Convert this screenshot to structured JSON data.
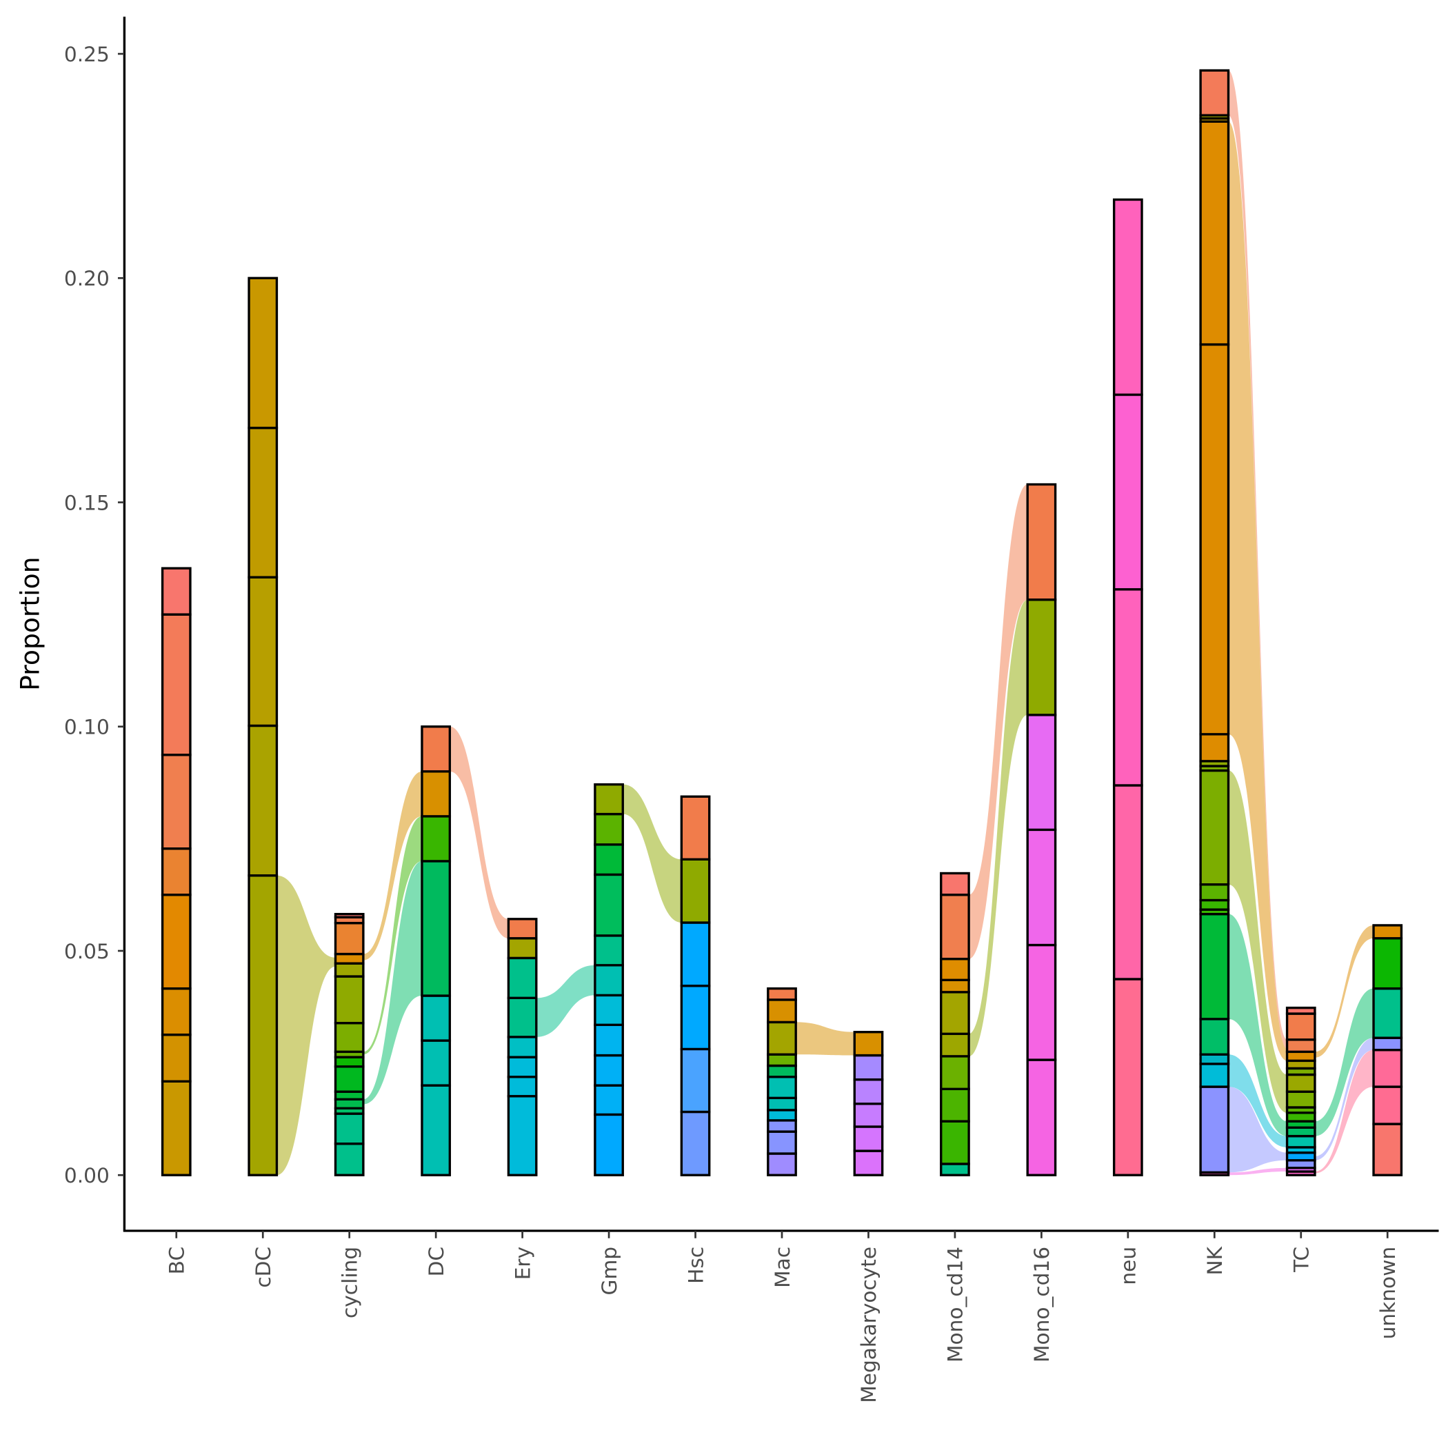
{
  "chart_data": {
    "type": "bar",
    "subtype": "stacked alluvial",
    "title": "",
    "xlabel": "",
    "ylabel": "Proportion",
    "ylim": [
      -0.0125,
      0.258
    ],
    "yticks": [
      0,
      0.05,
      0.1,
      0.15,
      0.2,
      0.25
    ],
    "ytick_labels": [
      "0.00",
      "0.05",
      "0.10",
      "0.15",
      "0.20",
      "0.25"
    ],
    "grid": false,
    "legend": "none",
    "categories": [
      "BC",
      "cDC",
      "cycling",
      "DC",
      "Ery",
      "Gmp",
      "Hsc",
      "Mac",
      "Megakaryocyte",
      "Mono_cd14",
      "Mono_cd16",
      "neu",
      "NK",
      "TC",
      "unknown"
    ],
    "bars": [
      {
        "name": "BC",
        "bounds": [
          0,
          0.0209,
          0.0313,
          0.0416,
          0.0625,
          0.0728,
          0.0937,
          0.125,
          0.1353
        ],
        "colors": [
          "#C99800",
          "#D39200",
          "#DB8E00",
          "#E38900",
          "#EA8331",
          "#F07F4F",
          "#F37B59",
          "#F8766D"
        ]
      },
      {
        "name": "cDC",
        "bounds": [
          0,
          0.0668,
          0.1002,
          0.1333,
          0.1666,
          0.2
        ],
        "colors": [
          "#A3A500",
          "#AAA300",
          "#B79F00",
          "#C09B00",
          "#C99800"
        ]
      },
      {
        "name": "cycling",
        "bounds": [
          0,
          0.007,
          0.0137,
          0.0149,
          0.0169,
          0.0186,
          0.0242,
          0.0263,
          0.0275,
          0.0339,
          0.0443,
          0.0472,
          0.0493,
          0.0562,
          0.0575,
          0.0582
        ],
        "colors": [
          "#00C08B",
          "#00C08B",
          "#00BE67",
          "#00BB4E",
          "#00BA38",
          "#00B81F",
          "#0CB702",
          "#6BB100",
          "#7CAE00",
          "#8FAA00",
          "#9DA700",
          "#DE8C00",
          "#EA8331",
          "#F07F4F",
          "#F8766D"
        ]
      },
      {
        "name": "DC",
        "bounds": [
          0,
          0.02,
          0.03,
          0.04,
          0.07,
          0.08,
          0.09,
          0.1
        ],
        "colors": [
          "#00BFB2",
          "#00BFB2",
          "#00BFB2",
          "#00BA5E",
          "#39B600",
          "#D89000",
          "#F17C4B"
        ]
      },
      {
        "name": "Ery",
        "bounds": [
          0,
          0.0176,
          0.0219,
          0.0263,
          0.0308,
          0.0395,
          0.0484,
          0.0528,
          0.0571
        ],
        "colors": [
          "#00BBDA",
          "#00BBDA",
          "#00BBDA",
          "#00BFC4",
          "#00C08B",
          "#00C08B",
          "#A3A500",
          "#F17C4B"
        ]
      },
      {
        "name": "Gmp",
        "bounds": [
          0,
          0.0135,
          0.02,
          0.0267,
          0.0335,
          0.0401,
          0.0468,
          0.0534,
          0.067,
          0.0737,
          0.0805,
          0.0871
        ],
        "colors": [
          "#00A9FF",
          "#00B0F6",
          "#00B0F6",
          "#00B4EF",
          "#00BCD8",
          "#00BFB2",
          "#00C08B",
          "#00BD5C",
          "#00BA38",
          "#5BB300",
          "#8FAA00"
        ]
      },
      {
        "name": "Hsc",
        "bounds": [
          0,
          0.0141,
          0.0281,
          0.0422,
          0.0563,
          0.0704,
          0.0844
        ],
        "colors": [
          "#6E9AFF",
          "#4AA3FF",
          "#00A9FF",
          "#00A9FF",
          "#8FAA00",
          "#F17C4B"
        ]
      },
      {
        "name": "Mac",
        "bounds": [
          0,
          0.0048,
          0.0097,
          0.0122,
          0.0145,
          0.0172,
          0.0219,
          0.0244,
          0.0269,
          0.0341,
          0.0391,
          0.0416
        ],
        "colors": [
          "#9F8CFF",
          "#8794FF",
          "#8794FF",
          "#00BBDA",
          "#00BFB2",
          "#00BFB2",
          "#00BA5E",
          "#6BB100",
          "#A3A500",
          "#D89000",
          "#F17C4B",
          "#F8766D"
        ]
      },
      {
        "name": "Megakaryocyte",
        "bounds": [
          0,
          0.0054,
          0.0108,
          0.0159,
          0.0213,
          0.0267,
          0.0319
        ],
        "colors": [
          "#DB72FB",
          "#D575FE",
          "#C77CFF",
          "#B983FF",
          "#A58AFF",
          "#D89000"
        ]
      },
      {
        "name": "Mono_cd14",
        "bounds": [
          0,
          0.0025,
          0.012,
          0.0192,
          0.0265,
          0.0315,
          0.0408,
          0.0435,
          0.0482,
          0.0625,
          0.0673
        ],
        "colors": [
          "#00C08B",
          "#3AB500",
          "#4CB400",
          "#6BB100",
          "#9DA700",
          "#A3A500",
          "#D89000",
          "#DF8D00",
          "#F07F4F",
          "#F8766D"
        ]
      },
      {
        "name": "Mono_cd16",
        "bounds": [
          0,
          0.0257,
          0.0513,
          0.077,
          0.1026,
          0.1283,
          0.154
        ],
        "colors": [
          "#F564E3",
          "#F564E3",
          "#EF67EB",
          "#E76BF3",
          "#8FAA00",
          "#F17C4B"
        ]
      },
      {
        "name": "neu",
        "bounds": [
          0,
          0.0437,
          0.0869,
          0.1306,
          0.174,
          0.2175
        ],
        "colors": [
          "#FF6C91",
          "#FF66A8",
          "#FF62BC",
          "#FD61D1",
          "#FF62BC"
        ]
      },
      {
        "name": "NK",
        "bounds": [
          0,
          0.0006,
          0.0197,
          0.0248,
          0.0269,
          0.0348,
          0.0582,
          0.0592,
          0.0613,
          0.0648,
          0.0902,
          0.0912,
          0.0923,
          0.0983,
          0.1852,
          0.2349,
          0.2356,
          0.2363,
          0.2463
        ],
        "colors": [
          "#FF61C3",
          "#8B93FF",
          "#00BCD8",
          "#00B4C4",
          "#00BE67",
          "#00BA38",
          "#39B600",
          "#39B600",
          "#5BB300",
          "#7CAE00",
          "#7CAE00",
          "#8FAA00",
          "#DE8C00",
          "#DE8C00",
          "#DE8C00",
          "#C99800",
          "#A3A500",
          "#F37B59"
        ]
      },
      {
        "name": "TC",
        "bounds": [
          0,
          0.0008,
          0.0016,
          0.0033,
          0.005,
          0.0062,
          0.0087,
          0.0106,
          0.012,
          0.0139,
          0.0151,
          0.0186,
          0.0224,
          0.0238,
          0.0255,
          0.0275,
          0.0302,
          0.036,
          0.0373
        ],
        "colors": [
          "#FF61C9",
          "#E76BF3",
          "#8794FF",
          "#00A5FF",
          "#00BCD8",
          "#00C1AA",
          "#00BE67",
          "#00BA38",
          "#39B600",
          "#5BB300",
          "#7CAE00",
          "#9AA800",
          "#7CAE00",
          "#AEA200",
          "#DE8C00",
          "#F07F4F",
          "#F17C4B",
          "#F8766D"
        ]
      },
      {
        "name": "unknown",
        "bounds": [
          0,
          0.0114,
          0.0197,
          0.0279,
          0.0306,
          0.0416,
          0.0528,
          0.0557
        ],
        "colors": [
          "#F8766D",
          "#FF6C91",
          "#FF6A98",
          "#8B93FF",
          "#00C08B",
          "#0CB702",
          "#DE8C00"
        ]
      }
    ],
    "flows": [
      {
        "from": "cDC",
        "to": "cycling",
        "from_range": [
          0,
          0.0668
        ],
        "to_range": [
          0.0465,
          0.0485
        ],
        "color": "#A3A500"
      },
      {
        "from": "cycling",
        "to": "DC",
        "from_range": [
          0.0479,
          0.0493
        ],
        "to_range": [
          0.08,
          0.09
        ],
        "color": "#D89000"
      },
      {
        "from": "cycling",
        "to": "DC",
        "from_range": [
          0.0269,
          0.0275
        ],
        "to_range": [
          0.07,
          0.08
        ],
        "color": "#39B600"
      },
      {
        "from": "cycling",
        "to": "DC",
        "from_range": [
          0.0158,
          0.0169
        ],
        "to_range": [
          0.04,
          0.07
        ],
        "color": "#00BE67"
      },
      {
        "from": "DC",
        "to": "Ery",
        "from_range": [
          0.09,
          0.1
        ],
        "to_range": [
          0.0528,
          0.0571
        ],
        "color": "#F17C4B"
      },
      {
        "from": "Ery",
        "to": "Gmp",
        "from_range": [
          0.0308,
          0.0395
        ],
        "to_range": [
          0.0401,
          0.0468
        ],
        "color": "#00C08B"
      },
      {
        "from": "Gmp",
        "to": "Hsc",
        "from_range": [
          0.0805,
          0.0871
        ],
        "to_range": [
          0.0563,
          0.0704
        ],
        "color": "#8FAA00"
      },
      {
        "from": "Mac",
        "to": "Megakaryocyte",
        "from_range": [
          0.0269,
          0.0341
        ],
        "to_range": [
          0.0267,
          0.0319
        ],
        "color": "#D89000"
      },
      {
        "from": "Mono_cd14",
        "to": "Mono_cd16",
        "from_range": [
          0.0482,
          0.0625
        ],
        "to_range": [
          0.1283,
          0.154
        ],
        "color": "#F17C4B"
      },
      {
        "from": "Mono_cd14",
        "to": "Mono_cd16",
        "from_range": [
          0.0265,
          0.0315
        ],
        "to_range": [
          0.1026,
          0.1283
        ],
        "color": "#8FAA00"
      },
      {
        "from": "NK",
        "to": "TC",
        "from_range": [
          0.2363,
          0.2463
        ],
        "to_range": [
          0.0282,
          0.0302
        ],
        "color": "#F37B59"
      },
      {
        "from": "NK",
        "to": "TC",
        "from_range": [
          0.0983,
          0.2349
        ],
        "to_range": [
          0.0255,
          0.0282
        ],
        "color": "#DE8C00"
      },
      {
        "from": "NK",
        "to": "TC",
        "from_range": [
          0.0648,
          0.0902
        ],
        "to_range": [
          0.0139,
          0.0224
        ],
        "color": "#8FAA00"
      },
      {
        "from": "NK",
        "to": "TC",
        "from_range": [
          0.0348,
          0.0582
        ],
        "to_range": [
          0.0087,
          0.012
        ],
        "color": "#00BE67"
      },
      {
        "from": "NK",
        "to": "TC",
        "from_range": [
          0.0197,
          0.0269
        ],
        "to_range": [
          0.0062,
          0.0087
        ],
        "color": "#00BCD8"
      },
      {
        "from": "NK",
        "to": "TC",
        "from_range": [
          0.0006,
          0.0197
        ],
        "to_range": [
          0.0033,
          0.005
        ],
        "color": "#8B93FF"
      },
      {
        "from": "NK",
        "to": "TC",
        "from_range": [
          0,
          0.0006
        ],
        "to_range": [
          0.0008,
          0.0016
        ],
        "color": "#F564E3"
      },
      {
        "from": "TC",
        "to": "unknown",
        "from_range": [
          0.0262,
          0.0275
        ],
        "to_range": [
          0.0528,
          0.0557
        ],
        "color": "#DE8C00"
      },
      {
        "from": "TC",
        "to": "unknown",
        "from_range": [
          0.0087,
          0.012
        ],
        "to_range": [
          0.0306,
          0.0416
        ],
        "color": "#00BE67"
      },
      {
        "from": "TC",
        "to": "unknown",
        "from_range": [
          0.0033,
          0.0042
        ],
        "to_range": [
          0.0279,
          0.0306
        ],
        "color": "#8B93FF"
      },
      {
        "from": "TC",
        "to": "unknown",
        "from_range": [
          0.0004,
          0.0008
        ],
        "to_range": [
          0.0197,
          0.0279
        ],
        "color": "#FF6C91"
      }
    ]
  }
}
